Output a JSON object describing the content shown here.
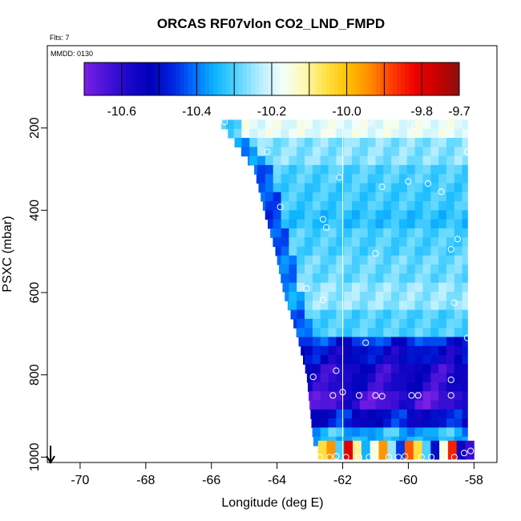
{
  "chart_data": {
    "type": "heatmap",
    "title": "ORCAS RF07vlon CO2_LND_FMPD",
    "flights_note": "Flts: 7",
    "date_note": "MMDD: 0130",
    "xlabel": "Longitude (deg E)",
    "ylabel": "PSXC (mbar)",
    "xlim": [
      -71.0,
      -57.3
    ],
    "ylim": [
      1013,
      0
    ],
    "x_ticks": [
      -70,
      -68,
      -66,
      -64,
      -62,
      -60,
      -58
    ],
    "y_ticks": [
      200,
      400,
      600,
      800,
      1000
    ],
    "x_tick_labels": [
      "-70",
      "-68",
      "-66",
      "-64",
      "-62",
      "-60",
      "-58"
    ],
    "y_tick_labels": [
      "200",
      "400",
      "600",
      "800",
      "1000"
    ],
    "colorbar": {
      "min": -10.7,
      "max": -9.7,
      "ticks": [
        -10.6,
        -10.4,
        -10.2,
        -10.0,
        -9.8,
        -9.7
      ],
      "tick_labels": [
        "-10.6",
        "-10.4",
        "-10.2",
        "-10.0",
        "-9.8",
        "-9.7"
      ],
      "colors": [
        "#7a1fe6",
        "#4a12d8",
        "#1b08cc",
        "#0000b8",
        "#0022e0",
        "#0070ff",
        "#10b8ff",
        "#5cd6ff",
        "#b8eeff",
        "#f2fffa",
        "#fff8b0",
        "#ffe040",
        "#ffbf00",
        "#ff8800",
        "#ff3800",
        "#ee0000",
        "#c80000",
        "#8c1010"
      ]
    },
    "vertical_line_lon": -62.0,
    "arrow_marker": {
      "lon": -70.9,
      "psxc": 1000
    },
    "domain": {
      "lon_min": -65.8,
      "lon_max": -58.2,
      "edge": [
        [
          180,
          -65.8
        ],
        [
          300,
          -64.7
        ],
        [
          400,
          -64.4
        ],
        [
          500,
          -64.05
        ],
        [
          600,
          -63.8
        ],
        [
          700,
          -63.4
        ],
        [
          800,
          -63.1
        ],
        [
          880,
          -63.0
        ],
        [
          960,
          -62.9
        ],
        [
          1000,
          -62.7
        ]
      ],
      "bands": [
        {
          "p0": 180,
          "p1": 220,
          "v": -10.18
        },
        {
          "p0": 220,
          "p1": 280,
          "v": -10.26
        },
        {
          "p0": 280,
          "p1": 340,
          "v": -10.3
        },
        {
          "p0": 340,
          "p1": 390,
          "v": -10.31
        },
        {
          "p0": 390,
          "p1": 450,
          "v": -10.33
        },
        {
          "p0": 450,
          "p1": 520,
          "v": -10.3
        },
        {
          "p0": 520,
          "p1": 580,
          "v": -10.28
        },
        {
          "p0": 580,
          "p1": 640,
          "v": -10.25
        },
        {
          "p0": 640,
          "p1": 700,
          "v": -10.3
        },
        {
          "p0": 700,
          "p1": 740,
          "v": -10.46
        },
        {
          "p0": 740,
          "p1": 780,
          "v": -10.52
        },
        {
          "p0": 780,
          "p1": 830,
          "v": -10.58
        },
        {
          "p0": 830,
          "p1": 880,
          "v": -10.63
        },
        {
          "p0": 880,
          "p1": 930,
          "v": -10.5
        },
        {
          "p0": 930,
          "p1": 965,
          "v": -10.35
        },
        {
          "p0": 965,
          "p1": 1005,
          "v": -10.1
        }
      ],
      "bottom_row": [
        -10.05,
        -9.95,
        -10.3,
        -9.8,
        -10.1,
        -10.35,
        -10.15,
        -9.95,
        -10.25,
        -10.45,
        -9.9,
        -10.05,
        -10.3,
        -10.5,
        -10.15,
        -9.85,
        -10.55,
        -10.62
      ]
    },
    "observations": [
      [
        -65.6,
        185
      ],
      [
        -62.4,
        212
      ],
      [
        -61.2,
        185
      ],
      [
        -59.8,
        195
      ],
      [
        -64.3,
        258
      ],
      [
        -58.2,
        258
      ],
      [
        -62.1,
        320
      ],
      [
        -60.8,
        343
      ],
      [
        -60.0,
        330
      ],
      [
        -59.4,
        335
      ],
      [
        -59.0,
        355
      ],
      [
        -63.9,
        392
      ],
      [
        -62.6,
        422
      ],
      [
        -62.5,
        442
      ],
      [
        -61.0,
        505
      ],
      [
        -58.5,
        470
      ],
      [
        -58.7,
        495
      ],
      [
        -63.1,
        590
      ],
      [
        -62.6,
        618
      ],
      [
        -58.6,
        625
      ],
      [
        -58.2,
        710
      ],
      [
        -61.3,
        722
      ],
      [
        -62.2,
        790
      ],
      [
        -62.9,
        805
      ],
      [
        -58.7,
        812
      ],
      [
        -62.0,
        842
      ],
      [
        -62.3,
        850
      ],
      [
        -61.5,
        850
      ],
      [
        -61.0,
        850
      ],
      [
        -60.8,
        852
      ],
      [
        -59.9,
        850
      ],
      [
        -59.7,
        850
      ],
      [
        -58.7,
        850
      ],
      [
        -62.7,
        1000
      ],
      [
        -62.4,
        1000
      ],
      [
        -62.2,
        998
      ],
      [
        -61.9,
        1000
      ],
      [
        -61.5,
        1000
      ],
      [
        -61.2,
        1000
      ],
      [
        -61.0,
        1000
      ],
      [
        -60.6,
        1000
      ],
      [
        -60.3,
        1000
      ],
      [
        -60.1,
        998
      ],
      [
        -59.6,
        1000
      ],
      [
        -59.3,
        1000
      ],
      [
        -58.9,
        998
      ],
      [
        -58.6,
        1000
      ],
      [
        -58.3,
        990
      ],
      [
        -58.1,
        985
      ]
    ]
  }
}
